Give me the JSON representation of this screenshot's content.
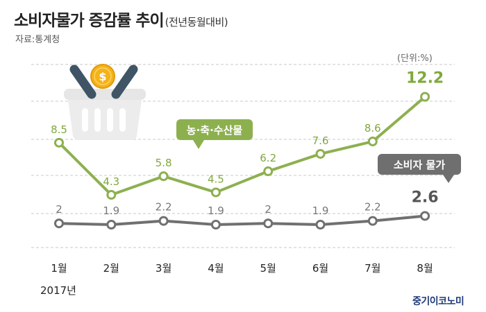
{
  "header": {
    "title": "소비자물가 증감률 추이",
    "subtitle": "(전년동월대비)",
    "source": "자료:통계청",
    "unit": "(단위:%)"
  },
  "footer": {
    "year": "2017년",
    "brand": "중기이코노미"
  },
  "colors": {
    "agri": "#8db04f",
    "cpi": "#707070",
    "grid": "#c8c8c8"
  },
  "icon": "shopping-basket-coin-icon",
  "chart_data": {
    "type": "line",
    "categories": [
      "1월",
      "2월",
      "3월",
      "4월",
      "5월",
      "6월",
      "7월",
      "8월"
    ],
    "series": [
      {
        "name": "농·축·수산물",
        "values": [
          8.5,
          4.3,
          5.8,
          4.5,
          6.2,
          7.6,
          8.6,
          12.2
        ]
      },
      {
        "name": "소비자 물가",
        "values": [
          2,
          1.9,
          2.2,
          1.9,
          2,
          1.9,
          2.2,
          2.6
        ]
      }
    ],
    "legend_placement": "inline-callouts",
    "grid": true
  }
}
